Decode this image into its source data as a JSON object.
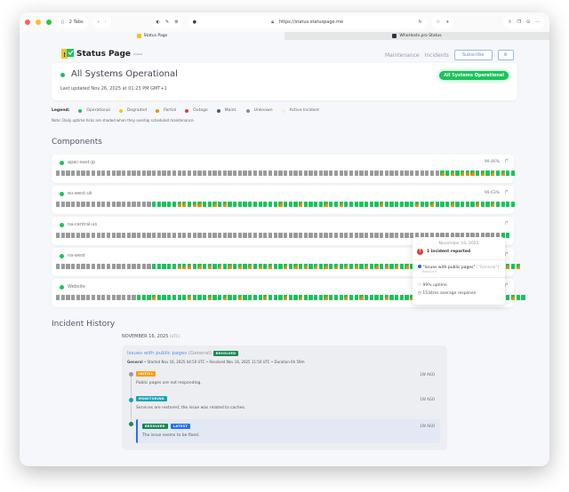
{
  "browser": {
    "tabs_count": "2 Tabs",
    "url": "https://status.statuspage.me",
    "tabs": [
      {
        "label": "Status Page",
        "active": true
      },
      {
        "label": "WhoHosts.pro Status",
        "active": false
      }
    ]
  },
  "header": {
    "logo_text": "Status Page",
    "logo_sup": "hosted",
    "nav": [
      "Maintenance",
      "Incidents"
    ],
    "subscribe": "Subscribe",
    "settings_icon": "gear-icon"
  },
  "status": {
    "title": "All Systems Operational",
    "updated": "Last updated Nov 26, 2025 at 01:23 PM GMT+1",
    "badge": "All Systems Operational",
    "color": "#19c45b"
  },
  "legend": {
    "label": "Legend:",
    "items": [
      {
        "label": "Operational",
        "color": "#19c45b"
      },
      {
        "label": "Degraded",
        "color": "#f5c518"
      },
      {
        "label": "Partial",
        "color": "#f58a0b"
      },
      {
        "label": "Outage",
        "color": "#e53935"
      },
      {
        "label": "Maint.",
        "color": "#4d5b6b"
      },
      {
        "label": "Unknown",
        "color": "#8a8a8a"
      },
      {
        "label": "Active Incident",
        "color": "#fbe9d6"
      }
    ],
    "note": "Note: Daily uptime ticks are shaded when they overlap scheduled maintenance."
  },
  "components": {
    "title": "Components",
    "items": [
      {
        "name": "apac-east-jp",
        "uptime": "99.46%",
        "ticks": "uuuuuuuuuuuuuuuuuuuuuuuuuuuuuuuuuuuuuuuuuuuuuuuuuuuuuuuuuuuuuuuuuuuuuuuuuuuupgpgpppgpgpgpgg"
      },
      {
        "name": "eu-west-uk",
        "uptime": "99.63%",
        "ticks": "uuuuuuuuuuuuuuuuuuugggggppgppggpgpggggggggggpgggpggggpggpgggggggpggggggpggpgggpggggpggpgggg"
      },
      {
        "name": "na-central-us",
        "uptime": "",
        "ticks": "uuuuuuuuuuuuuuuuuuuuuuuuuuuuuuuuuuuuuuuuuuuuuuuuuuuuuuuuuuuuuuuuuuuuuuuuuuuuuuuuuuuuuuuugg"
      },
      {
        "name": "na-west",
        "uptime": "",
        "ticks": "uuuuuuuuuuuuuuuuuuugggggpppgpgpgpgpgpgpgpgpggpgpgpgpgpgpgpgpgpgpgpgpgpgpgpgpgpgpgpgpgpgpgpgp"
      },
      {
        "name": "Website",
        "uptime": "",
        "ticks": "uuuuuuuuuuuuuuuugggpggggggpgggpggpggpggggpgggpggpggggpgggpggpggggpggggpgggpgppgggpggggpgggpgg"
      }
    ]
  },
  "tooltip": {
    "date": "November 16, 2025",
    "incidents": "1 incident reported",
    "incident_name": "\"Issues with public pages\"",
    "incident_group": "(\"General\")",
    "incident_state": "Resolved",
    "uptime": "99% uptime",
    "response": "1534ms average response"
  },
  "history": {
    "title": "Incident History",
    "date": "NOVEMBER 16, 2025",
    "tz": "(UTC)",
    "incident": {
      "title": "Issues with public pages",
      "group": "(General)",
      "badge": "RESOLVED",
      "meta_group": "General",
      "meta": " • Started Nov 16, 2025 04:50 UTC • Resolved Nov 16, 2025 11:50 UTC • Duration 6h 59m",
      "updates": [
        {
          "badge": "INITIAL",
          "color": "#f5a00b",
          "dot": "#999",
          "text": "Public pages are not responding.",
          "ago": "1W AGO"
        },
        {
          "badge": "MONITORING",
          "color": "#17a2b8",
          "dot": "#17a2b8",
          "text": "Services are restored; the issue was related to caches.",
          "ago": "1W AGO"
        },
        {
          "badge": "RESOLVED",
          "badge2": "LATEST",
          "color": "#198754",
          "dot": "#198754",
          "text": "The issue seems to be fixed.",
          "ago": "1W AGO"
        }
      ]
    }
  }
}
